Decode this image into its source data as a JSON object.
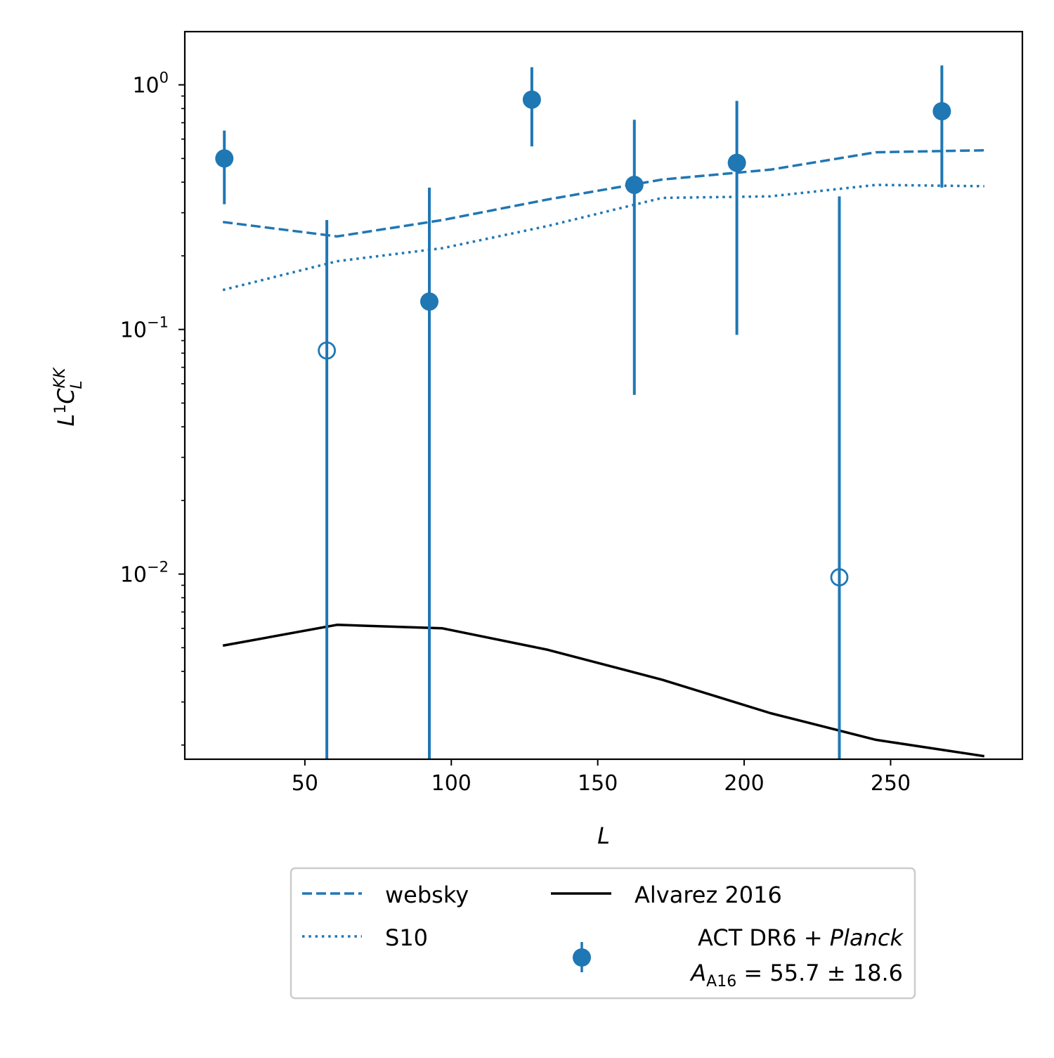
{
  "colors": {
    "blue": "#1f77b4",
    "black": "#000000",
    "legend_border": "#cccccc"
  },
  "chart_data": {
    "type": "scatter",
    "xlabel": "L",
    "ylabel": {
      "base": "L",
      "exponent": "1",
      "main": "C",
      "superscript": "KK",
      "subscript": "L"
    },
    "xlim": [
      9,
      295
    ],
    "ylim": [
      0.00175,
      1.65
    ],
    "yscale": "log",
    "grid": false,
    "legend_position": "below plot",
    "x_ticks": [
      50,
      100,
      150,
      200,
      250
    ],
    "x_tick_labels": [
      "50",
      "100",
      "150",
      "200",
      "250"
    ],
    "y_ticks": [
      1,
      0.1,
      0.01
    ],
    "y_tick_labels": [
      {
        "base": "10",
        "exp": "0"
      },
      {
        "base": "10",
        "exp": "−1"
      },
      {
        "base": "10",
        "exp": "−2"
      }
    ],
    "series": [
      {
        "name": "websky",
        "style": "dashed",
        "color": "#1f77b4",
        "x": [
          22,
          61,
          97,
          133,
          172,
          209,
          245,
          282
        ],
        "y": [
          0.275,
          0.24,
          0.28,
          0.34,
          0.41,
          0.45,
          0.53,
          0.54
        ]
      },
      {
        "name": "S10",
        "style": "dotted",
        "color": "#1f77b4",
        "x": [
          22,
          61,
          97,
          133,
          172,
          209,
          245,
          282
        ],
        "y": [
          0.145,
          0.19,
          0.215,
          0.265,
          0.345,
          0.35,
          0.39,
          0.385
        ]
      },
      {
        "name": "Alvarez 2016",
        "style": "solid",
        "color": "#000000",
        "x": [
          22,
          61,
          97,
          133,
          172,
          209,
          245,
          282
        ],
        "y": [
          0.0051,
          0.0062,
          0.006,
          0.0049,
          0.0037,
          0.0027,
          0.0021,
          0.0018
        ]
      }
    ],
    "points": {
      "name": "ACT DR6 + Planck",
      "color": "#1f77b4",
      "data": [
        {
          "x": 22.5,
          "y": 0.5,
          "yerr_low": 0.325,
          "yerr_high": 0.65,
          "filled": true
        },
        {
          "x": 57.5,
          "y": 0.082,
          "yerr_low": 0.0005,
          "yerr_high": 0.28,
          "filled": false
        },
        {
          "x": 92.5,
          "y": 0.13,
          "yerr_low": 0.0005,
          "yerr_high": 0.38,
          "filled": true
        },
        {
          "x": 127.5,
          "y": 0.87,
          "yerr_low": 0.56,
          "yerr_high": 1.18,
          "filled": true
        },
        {
          "x": 162.5,
          "y": 0.39,
          "yerr_low": 0.054,
          "yerr_high": 0.72,
          "filled": true
        },
        {
          "x": 197.5,
          "y": 0.48,
          "yerr_low": 0.095,
          "yerr_high": 0.86,
          "filled": true
        },
        {
          "x": 232.5,
          "y": 0.0097,
          "yerr_low": 0.0005,
          "yerr_high": 0.35,
          "filled": false
        },
        {
          "x": 267.5,
          "y": 0.78,
          "yerr_low": 0.38,
          "yerr_high": 1.2,
          "filled": true
        }
      ]
    }
  },
  "legend": {
    "websky": "websky",
    "s10": "S10",
    "alvarez": "Alvarez 2016",
    "act_prefix": "ACT DR6 + ",
    "act_planck": "Planck",
    "amp_symbol": "A",
    "amp_sub": "A16",
    "amp_value": " = 55.7 ± 18.6"
  }
}
